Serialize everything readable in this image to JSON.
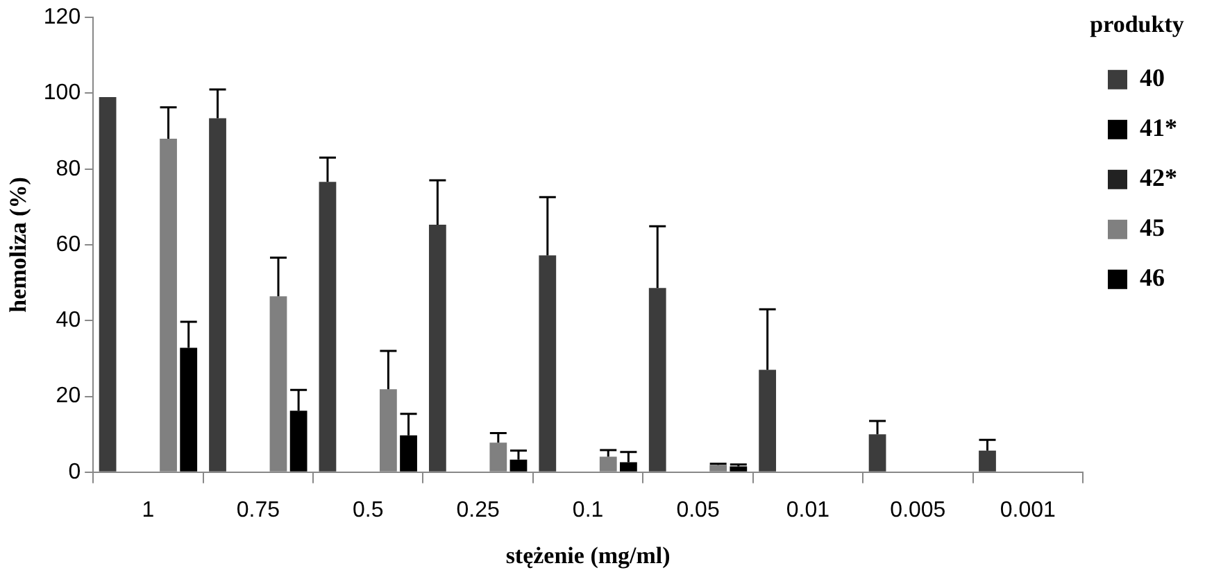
{
  "chart_data": {
    "type": "bar",
    "xlabel": "stężenie (mg/ml)",
    "ylabel": "hemoliza (%)",
    "legend_title": "produkty",
    "categories": [
      "1",
      "0.75",
      "0.5",
      "0.25",
      "0.1",
      "0.05",
      "0.01",
      "0.005",
      "0.001"
    ],
    "ylim": [
      0,
      120
    ],
    "yticks": [
      0,
      20,
      40,
      60,
      80,
      100,
      120
    ],
    "grid": false,
    "legend": "right",
    "series": [
      {
        "name": "40",
        "color": "#3c3c3c",
        "values": [
          99,
          93.4,
          76.6,
          65.3,
          57.2,
          48.6,
          27,
          10,
          5.7
        ],
        "errors": [
          null,
          [
            93.4,
            101
          ],
          [
            76.6,
            83
          ],
          [
            65.3,
            77
          ],
          [
            57.2,
            72.6
          ],
          [
            48.6,
            64.9
          ],
          [
            27,
            43
          ],
          [
            10,
            13.5
          ],
          [
            5.7,
            8.5
          ]
        ]
      },
      {
        "name": "41*",
        "color": "#000000",
        "values": [
          null,
          null,
          null,
          null,
          null,
          null,
          null,
          null,
          null
        ]
      },
      {
        "name": "42*",
        "color": "#222222",
        "values": [
          null,
          null,
          null,
          null,
          null,
          null,
          null,
          null,
          null
        ]
      },
      {
        "name": "45",
        "color": "#808080",
        "values": [
          88,
          46.4,
          21.9,
          7.8,
          4.1,
          1.9,
          null,
          null,
          null
        ],
        "errors": [
          [
            88,
            96.3
          ],
          [
            46.4,
            56.6
          ],
          [
            21.9,
            32
          ],
          [
            7.8,
            10.3
          ],
          [
            4.1,
            5.8
          ],
          [
            1.9,
            2.2
          ],
          null,
          null,
          null
        ]
      },
      {
        "name": "46",
        "color": "#000000",
        "values": [
          32.8,
          16.2,
          9.7,
          3.3,
          2.6,
          1.5,
          null,
          null,
          null
        ],
        "errors": [
          [
            32.8,
            39.7
          ],
          [
            16.2,
            21.7
          ],
          [
            9.7,
            15.4
          ],
          [
            3.3,
            5.7
          ],
          [
            2.6,
            5.3
          ],
          [
            1.5,
            2
          ],
          null,
          null,
          null
        ]
      }
    ]
  }
}
